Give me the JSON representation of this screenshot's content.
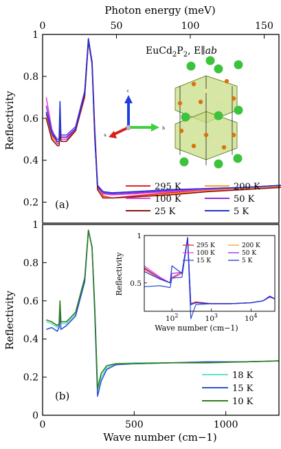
{
  "chart_data": [
    {
      "panel": "(a)",
      "type": "line",
      "top_axis_label": "Photon energy (meV)",
      "top_ticks": [
        0,
        50,
        100,
        150
      ],
      "top_xlim": [
        0,
        160
      ],
      "ylabel": "Reflectivity",
      "ylim": [
        0.1,
        1.0
      ],
      "yticks": [
        0.2,
        0.4,
        0.6,
        0.8,
        1
      ],
      "compound_label": "EuCd2P2, E||ab",
      "crystal_axes": [
        "c",
        "a",
        "b"
      ],
      "legend_position": "bottom-right",
      "grid": false,
      "series": [
        {
          "name": "295 K",
          "color": "#e8211d",
          "x": [
            20,
            50,
            80,
            90,
            95,
            100,
            130,
            180,
            230,
            250,
            270,
            285,
            300,
            330,
            380,
            500,
            700,
            900,
            1100,
            1300
          ],
          "y": [
            0.62,
            0.52,
            0.49,
            0.49,
            0.52,
            0.5,
            0.5,
            0.54,
            0.7,
            0.97,
            0.87,
            0.55,
            0.28,
            0.23,
            0.22,
            0.23,
            0.245,
            0.26,
            0.27,
            0.28
          ]
        },
        {
          "name": "200 K",
          "color": "#ff9a2e",
          "x": [
            20,
            50,
            80,
            90,
            95,
            100,
            130,
            180,
            230,
            250,
            270,
            285,
            300,
            330,
            380,
            500,
            700,
            900,
            1100,
            1300
          ],
          "y": [
            0.61,
            0.51,
            0.48,
            0.48,
            0.53,
            0.49,
            0.49,
            0.54,
            0.71,
            0.97,
            0.86,
            0.52,
            0.27,
            0.225,
            0.22,
            0.225,
            0.24,
            0.255,
            0.265,
            0.275
          ]
        },
        {
          "name": "100 K",
          "color": "#e040e0",
          "x": [
            20,
            50,
            80,
            90,
            95,
            100,
            130,
            180,
            230,
            250,
            270,
            285,
            300,
            330,
            380,
            500,
            700,
            900,
            1100,
            1300
          ],
          "y": [
            0.7,
            0.55,
            0.48,
            0.48,
            0.55,
            0.5,
            0.5,
            0.55,
            0.72,
            0.97,
            0.86,
            0.53,
            0.27,
            0.24,
            0.235,
            0.24,
            0.25,
            0.26,
            0.27,
            0.28
          ]
        },
        {
          "name": "50 K",
          "color": "#8a2be2",
          "x": [
            20,
            50,
            80,
            90,
            95,
            100,
            130,
            180,
            230,
            250,
            270,
            285,
            300,
            330,
            380,
            500,
            700,
            900,
            1100,
            1300
          ],
          "y": [
            0.66,
            0.54,
            0.5,
            0.5,
            0.6,
            0.52,
            0.52,
            0.56,
            0.73,
            0.98,
            0.87,
            0.52,
            0.27,
            0.245,
            0.24,
            0.245,
            0.255,
            0.265,
            0.27,
            0.28
          ]
        },
        {
          "name": "25 K",
          "color": "#8b1010",
          "x": [
            20,
            50,
            80,
            90,
            95,
            100,
            130,
            180,
            230,
            250,
            270,
            285,
            300,
            330,
            380,
            500,
            700,
            900,
            1100,
            1300
          ],
          "y": [
            0.6,
            0.5,
            0.47,
            0.47,
            0.54,
            0.49,
            0.49,
            0.54,
            0.71,
            0.97,
            0.86,
            0.52,
            0.26,
            0.22,
            0.22,
            0.225,
            0.235,
            0.25,
            0.26,
            0.27
          ]
        },
        {
          "name": "5 K",
          "color": "#2033d0",
          "x": [
            20,
            50,
            80,
            90,
            95,
            100,
            130,
            180,
            230,
            250,
            270,
            285,
            300,
            330,
            380,
            500,
            700,
            900,
            1100,
            1300
          ],
          "y": [
            0.63,
            0.53,
            0.49,
            0.49,
            0.68,
            0.51,
            0.51,
            0.55,
            0.72,
            0.98,
            0.86,
            0.5,
            0.28,
            0.25,
            0.245,
            0.25,
            0.26,
            0.265,
            0.27,
            0.28
          ]
        }
      ]
    },
    {
      "panel": "(b)",
      "type": "line",
      "xlabel": "Wave number (cm−1)",
      "ylabel": "Reflectivity",
      "xlim": [
        0,
        1290
      ],
      "xticks": [
        0,
        500,
        1000
      ],
      "ylim": [
        0,
        1.0
      ],
      "yticks": [
        0,
        0.2,
        0.4,
        0.6,
        0.8,
        1
      ],
      "legend_position": "bottom-right",
      "grid": false,
      "series": [
        {
          "name": "18 K",
          "color": "#5fe0d5",
          "x": [
            20,
            50,
            80,
            90,
            95,
            100,
            130,
            180,
            230,
            250,
            270,
            285,
            300,
            320,
            350,
            400,
            500,
            700,
            900,
            1100,
            1290
          ],
          "y": [
            0.49,
            0.48,
            0.46,
            0.47,
            0.58,
            0.48,
            0.48,
            0.53,
            0.71,
            0.97,
            0.88,
            0.55,
            0.13,
            0.2,
            0.25,
            0.27,
            0.275,
            0.275,
            0.28,
            0.28,
            0.285
          ]
        },
        {
          "name": "15 K",
          "color": "#2a4fd6",
          "x": [
            20,
            50,
            80,
            90,
            95,
            100,
            130,
            180,
            230,
            250,
            270,
            285,
            300,
            320,
            350,
            400,
            500,
            700,
            900,
            1100,
            1290
          ],
          "y": [
            0.45,
            0.46,
            0.44,
            0.46,
            0.55,
            0.45,
            0.47,
            0.52,
            0.7,
            0.97,
            0.88,
            0.53,
            0.1,
            0.18,
            0.24,
            0.265,
            0.27,
            0.275,
            0.28,
            0.28,
            0.285
          ]
        },
        {
          "name": "10 K",
          "color": "#2e7d1c",
          "x": [
            20,
            50,
            80,
            90,
            95,
            100,
            130,
            180,
            230,
            250,
            270,
            285,
            300,
            320,
            350,
            400,
            500,
            700,
            900,
            1100,
            1290
          ],
          "y": [
            0.5,
            0.49,
            0.47,
            0.48,
            0.6,
            0.49,
            0.49,
            0.54,
            0.72,
            0.97,
            0.88,
            0.56,
            0.14,
            0.22,
            0.26,
            0.27,
            0.27,
            0.275,
            0.275,
            0.28,
            0.285
          ]
        }
      ]
    },
    {
      "panel": "inset",
      "type": "line",
      "xlabel": "Wave number (cm−1)",
      "ylabel": "Reflectivity",
      "xscale": "log",
      "xlim": [
        20,
        40000
      ],
      "xtick_labels": [
        "10^2",
        "10^3",
        "10^4"
      ],
      "xtick_values": [
        100,
        1000,
        10000
      ],
      "ylim": [
        0.2,
        1.0
      ],
      "ytick_labels": [
        "0.5",
        "1"
      ],
      "ytick_values": [
        0.5,
        1.0
      ],
      "legend_position": "top-right",
      "series": [
        {
          "name": "295 K",
          "color": "#e8211d",
          "x": [
            20,
            50,
            90,
            100,
            180,
            250,
            300,
            400,
            1000,
            3000,
            10000,
            20000,
            30000,
            40000
          ],
          "y": [
            0.65,
            0.55,
            0.5,
            0.55,
            0.6,
            0.97,
            0.28,
            0.3,
            0.28,
            0.28,
            0.29,
            0.31,
            0.36,
            0.33
          ]
        },
        {
          "name": "200 K",
          "color": "#ff9a2e",
          "x": [
            20,
            50,
            90,
            100,
            180,
            250,
            300,
            400,
            1000,
            3000,
            10000,
            20000,
            30000,
            40000
          ],
          "y": [
            0.64,
            0.54,
            0.5,
            0.56,
            0.6,
            0.97,
            0.27,
            0.29,
            0.28,
            0.28,
            0.29,
            0.31,
            0.35,
            0.33
          ]
        },
        {
          "name": "100 K",
          "color": "#e040e0",
          "x": [
            20,
            50,
            90,
            100,
            180,
            250,
            300,
            400,
            1000,
            3000,
            10000,
            20000,
            30000,
            40000
          ],
          "y": [
            0.68,
            0.56,
            0.5,
            0.56,
            0.61,
            0.97,
            0.27,
            0.29,
            0.28,
            0.28,
            0.29,
            0.31,
            0.35,
            0.33
          ]
        },
        {
          "name": "50 K",
          "color": "#8a2be2",
          "x": [
            20,
            50,
            90,
            100,
            180,
            250,
            300,
            400,
            1000,
            3000,
            10000,
            20000,
            30000,
            40000
          ],
          "y": [
            0.66,
            0.55,
            0.5,
            0.6,
            0.61,
            0.98,
            0.27,
            0.29,
            0.28,
            0.28,
            0.29,
            0.31,
            0.35,
            0.33
          ]
        },
        {
          "name": "15 K",
          "color": "#2a4fd6",
          "x": [
            20,
            50,
            90,
            100,
            180,
            250,
            300,
            400,
            1000,
            3000,
            10000,
            20000,
            30000,
            40000
          ],
          "y": [
            0.46,
            0.47,
            0.45,
            0.55,
            0.56,
            0.97,
            0.12,
            0.27,
            0.28,
            0.28,
            0.29,
            0.31,
            0.36,
            0.33
          ]
        },
        {
          "name": "5 K",
          "color": "#2033d0",
          "x": [
            20,
            50,
            90,
            100,
            180,
            250,
            300,
            400,
            1000,
            3000,
            10000,
            20000,
            30000,
            40000
          ],
          "y": [
            0.62,
            0.54,
            0.5,
            0.68,
            0.6,
            0.98,
            0.27,
            0.29,
            0.28,
            0.28,
            0.29,
            0.31,
            0.36,
            0.33
          ]
        }
      ]
    }
  ]
}
